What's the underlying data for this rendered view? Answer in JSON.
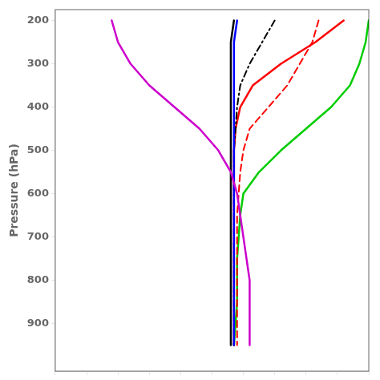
{
  "chart_data": {
    "type": "line",
    "y_label": "Pressure (hPa)",
    "xlim": [
      0,
      100
    ],
    "xticks": [
      0,
      10,
      20,
      30,
      40,
      50,
      60,
      70,
      80,
      90,
      100
    ],
    "ylim": [
      1010,
      175
    ],
    "yticks": [
      200,
      300,
      400,
      500,
      600,
      700,
      800,
      900
    ],
    "grid": false,
    "tick_labels": "y",
    "series": [
      {
        "color": "#cc00cc",
        "line_style": "solid",
        "x": [
          18,
          20,
          24,
          30,
          38,
          46,
          52,
          56,
          58,
          59,
          60,
          61,
          62,
          62,
          62,
          62
        ],
        "values": [
          200,
          250,
          300,
          350,
          400,
          450,
          500,
          550,
          600,
          650,
          700,
          750,
          800,
          850,
          900,
          950
        ]
      },
      {
        "color": "#0000ff",
        "line_style": "solid",
        "x": [
          58,
          57,
          57,
          57,
          57,
          57,
          57,
          57,
          57,
          57,
          57,
          57,
          57,
          57,
          57,
          57
        ],
        "values": [
          200,
          250,
          300,
          350,
          400,
          450,
          500,
          550,
          600,
          650,
          700,
          750,
          800,
          850,
          900,
          950
        ]
      },
      {
        "color": "#000000",
        "line_style": "solid",
        "x": [
          57,
          56,
          56,
          56,
          56,
          56,
          56,
          56,
          56,
          56,
          56,
          56,
          56,
          56,
          56,
          56
        ],
        "values": [
          200,
          250,
          300,
          350,
          400,
          450,
          500,
          550,
          600,
          650,
          700,
          750,
          800,
          850,
          900,
          950
        ]
      },
      {
        "color": "#000000",
        "line_style": "dashdot",
        "x": [
          70,
          66,
          62,
          59,
          58,
          57.5,
          57,
          57,
          57,
          57,
          57,
          57,
          57,
          57,
          57,
          57
        ],
        "values": [
          200,
          250,
          300,
          350,
          400,
          450,
          500,
          550,
          600,
          650,
          700,
          750,
          800,
          850,
          900,
          950
        ]
      },
      {
        "color": "#ff0000",
        "line_style": "solid",
        "x": [
          92,
          83,
          72,
          63,
          59,
          57.5,
          57,
          57,
          57,
          57,
          57,
          57,
          57,
          57,
          57,
          57
        ],
        "values": [
          200,
          250,
          300,
          350,
          400,
          450,
          500,
          550,
          600,
          650,
          700,
          750,
          800,
          850,
          900,
          950
        ]
      },
      {
        "color": "#ff0000",
        "line_style": "dashed",
        "x": [
          84,
          82,
          78,
          74,
          68,
          62,
          60,
          59,
          58.5,
          58,
          58,
          58,
          58,
          58,
          58,
          58
        ],
        "values": [
          200,
          250,
          300,
          350,
          400,
          450,
          500,
          550,
          600,
          650,
          700,
          750,
          800,
          850,
          900,
          950
        ]
      },
      {
        "color": "#00cc00",
        "line_style": "solid",
        "x": [
          100,
          99,
          97,
          94,
          88,
          80,
          72,
          65,
          60,
          59,
          58.5,
          58,
          58,
          58,
          57.5,
          57
        ],
        "values": [
          200,
          250,
          300,
          350,
          400,
          450,
          500,
          550,
          600,
          650,
          700,
          750,
          800,
          850,
          900,
          950
        ]
      }
    ]
  }
}
